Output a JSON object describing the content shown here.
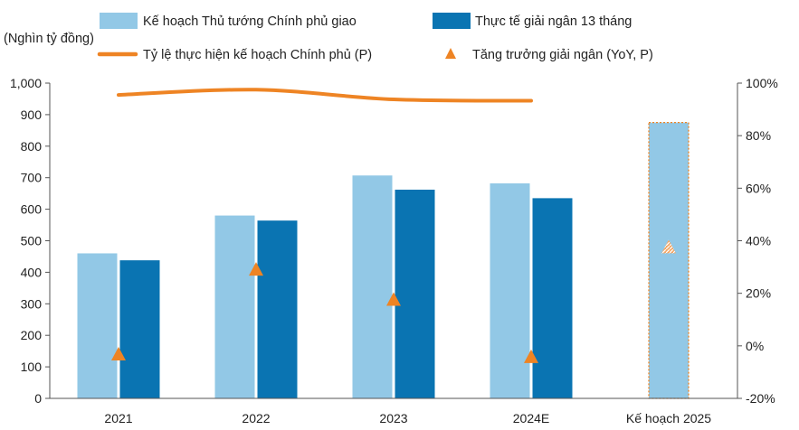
{
  "chart_data": {
    "type": "bar",
    "categories": [
      "2021",
      "2022",
      "2023",
      "2024E",
      "Kế hoạch 2025"
    ],
    "unit_label": "(Nghìn tỷ đồng)",
    "series": [
      {
        "name": "Kế hoạch Thủ tướng Chính phủ giao",
        "kind": "bar",
        "axis": "left",
        "color": "#92c8e6",
        "values": [
          460,
          580,
          707,
          682,
          875
        ]
      },
      {
        "name": "Thực tế giải ngân 13 tháng",
        "kind": "bar",
        "axis": "left",
        "color": "#0a74b2",
        "values": [
          438,
          564,
          662,
          635,
          null
        ]
      },
      {
        "name": "Tỷ lệ thực hiện kế hoạch Chính phủ (P)",
        "kind": "line",
        "axis": "right",
        "color": "#ee8424",
        "values": [
          95.5,
          97.5,
          93.8,
          93.3,
          null
        ]
      },
      {
        "name": "Tăng trưởng giải ngân (YoY, P)",
        "kind": "marker",
        "axis": "right",
        "color": "#ee8424",
        "values": [
          -3.5,
          28.8,
          17.3,
          -4.5,
          37.3
        ]
      }
    ],
    "y_left": {
      "range": [
        0,
        1000
      ],
      "ticks": [
        0,
        100,
        200,
        300,
        400,
        500,
        600,
        700,
        800,
        900,
        1000
      ],
      "tick_labels": [
        "0",
        "100",
        "200",
        "300",
        "400",
        "500",
        "600",
        "700",
        "800",
        "900",
        "1,000"
      ]
    },
    "y_right": {
      "range": [
        -20,
        100
      ],
      "ticks": [
        -20,
        0,
        20,
        40,
        60,
        80,
        100
      ],
      "tick_labels": [
        "-20%",
        "0%",
        "20%",
        "40%",
        "60%",
        "80%",
        "100%"
      ]
    },
    "grid": false,
    "legend_position": "top"
  }
}
